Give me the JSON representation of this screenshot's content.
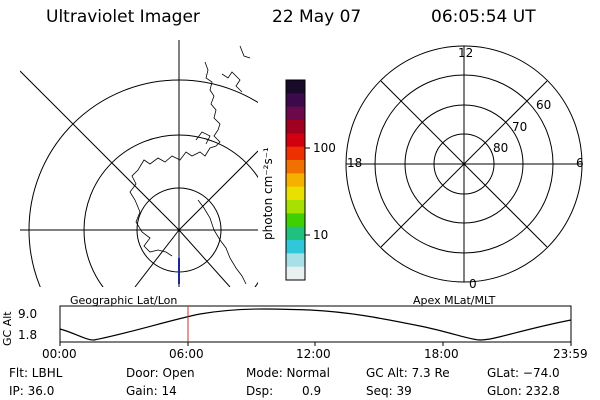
{
  "header": {
    "instrument": "Ultraviolet Imager",
    "date": "22 May 07",
    "time": "06:05:54 UT"
  },
  "colorbar": {
    "unit_label": "photon cm⁻²s⁻¹",
    "ticks": [
      "100",
      "10"
    ],
    "colors": [
      "#1a0a2a",
      "#3b0a4a",
      "#6a0a4a",
      "#a00020",
      "#d00010",
      "#ee3000",
      "#f07000",
      "#f6b000",
      "#e8e000",
      "#a8e000",
      "#40d000",
      "#20c080",
      "#30c8d8",
      "#a8e0e8",
      "#e8f0f0"
    ]
  },
  "geo_map": {
    "label": "Geographic Lat/Lon",
    "trace_color": "#1a2a9a"
  },
  "polar_map": {
    "label": "Apex MLat/MLT",
    "mlt_labels": {
      "top": "12",
      "left": "18",
      "right": "6",
      "bottom": "0"
    },
    "lat_labels": [
      "60",
      "70",
      "80"
    ]
  },
  "altitude_plot": {
    "ylabel": "GC Alt",
    "yticks": [
      "9.0",
      "1.8"
    ],
    "xticks": [
      "00:00",
      "06:00",
      "12:00",
      "18:00",
      "23:59"
    ],
    "marker_time": "06:05",
    "marker_color": "#c83030"
  },
  "footer": {
    "flt": "Flt: LBHL",
    "door": "Door: Open",
    "mode": "Mode: Normal",
    "gc_alt": "GC Alt: 7.3 Re",
    "glat": "GLat: −74.0",
    "ip": "IP: 36.0",
    "gain": "Gain: 14",
    "dsp_label": "Dsp:",
    "dsp_value": "0.9",
    "seq": "Seq: 39",
    "glon": "GLon: 232.8"
  }
}
